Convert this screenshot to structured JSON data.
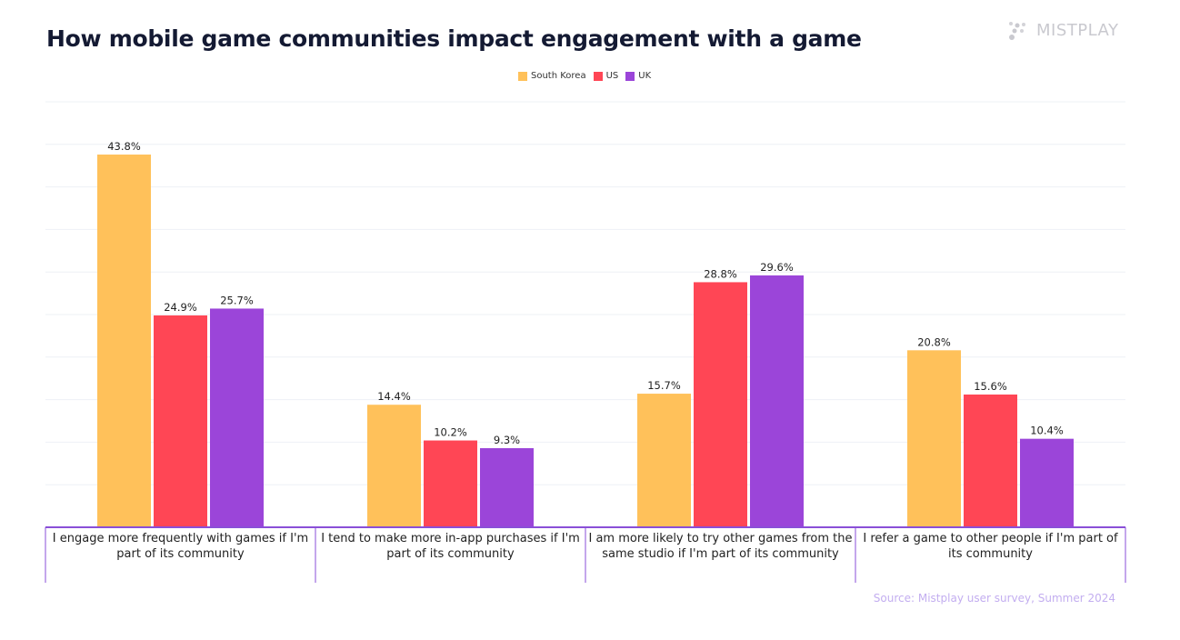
{
  "title": "How mobile game communities impact engagement with a game",
  "logo": {
    "text": "MISTPLAY"
  },
  "source": "Source: Mistplay user survey, Summer 2024",
  "chart_data": {
    "type": "bar",
    "title": "How mobile game communities impact engagement with a game",
    "categories": [
      "I engage more frequently with games if I'm part of its community",
      "I tend to make more in-app purchases if I'm part of its community",
      "I am more likely to try other games from the same studio if I'm part of its community",
      "I refer a game to other people if I'm part of its community"
    ],
    "series": [
      {
        "name": "South Korea",
        "color": "#FFC15A",
        "values": [
          43.8,
          14.4,
          15.7,
          20.8
        ],
        "labels": [
          "43.8%",
          "14.4%",
          "15.7%",
          "20.8%"
        ]
      },
      {
        "name": "US",
        "color": "#FF4655",
        "values": [
          24.9,
          10.2,
          28.8,
          15.6
        ],
        "labels": [
          "24.9%",
          "10.2%",
          "28.8%",
          "15.6%"
        ]
      },
      {
        "name": "UK",
        "color": "#9B45D9",
        "values": [
          25.7,
          9.3,
          29.6,
          10.4
        ],
        "labels": [
          "25.7%",
          "9.3%",
          "29.6%",
          "10.4%"
        ]
      }
    ],
    "ylim": [
      0,
      50
    ],
    "grid": true,
    "legend": "top-center",
    "axis_color": "#8A4FD8"
  }
}
